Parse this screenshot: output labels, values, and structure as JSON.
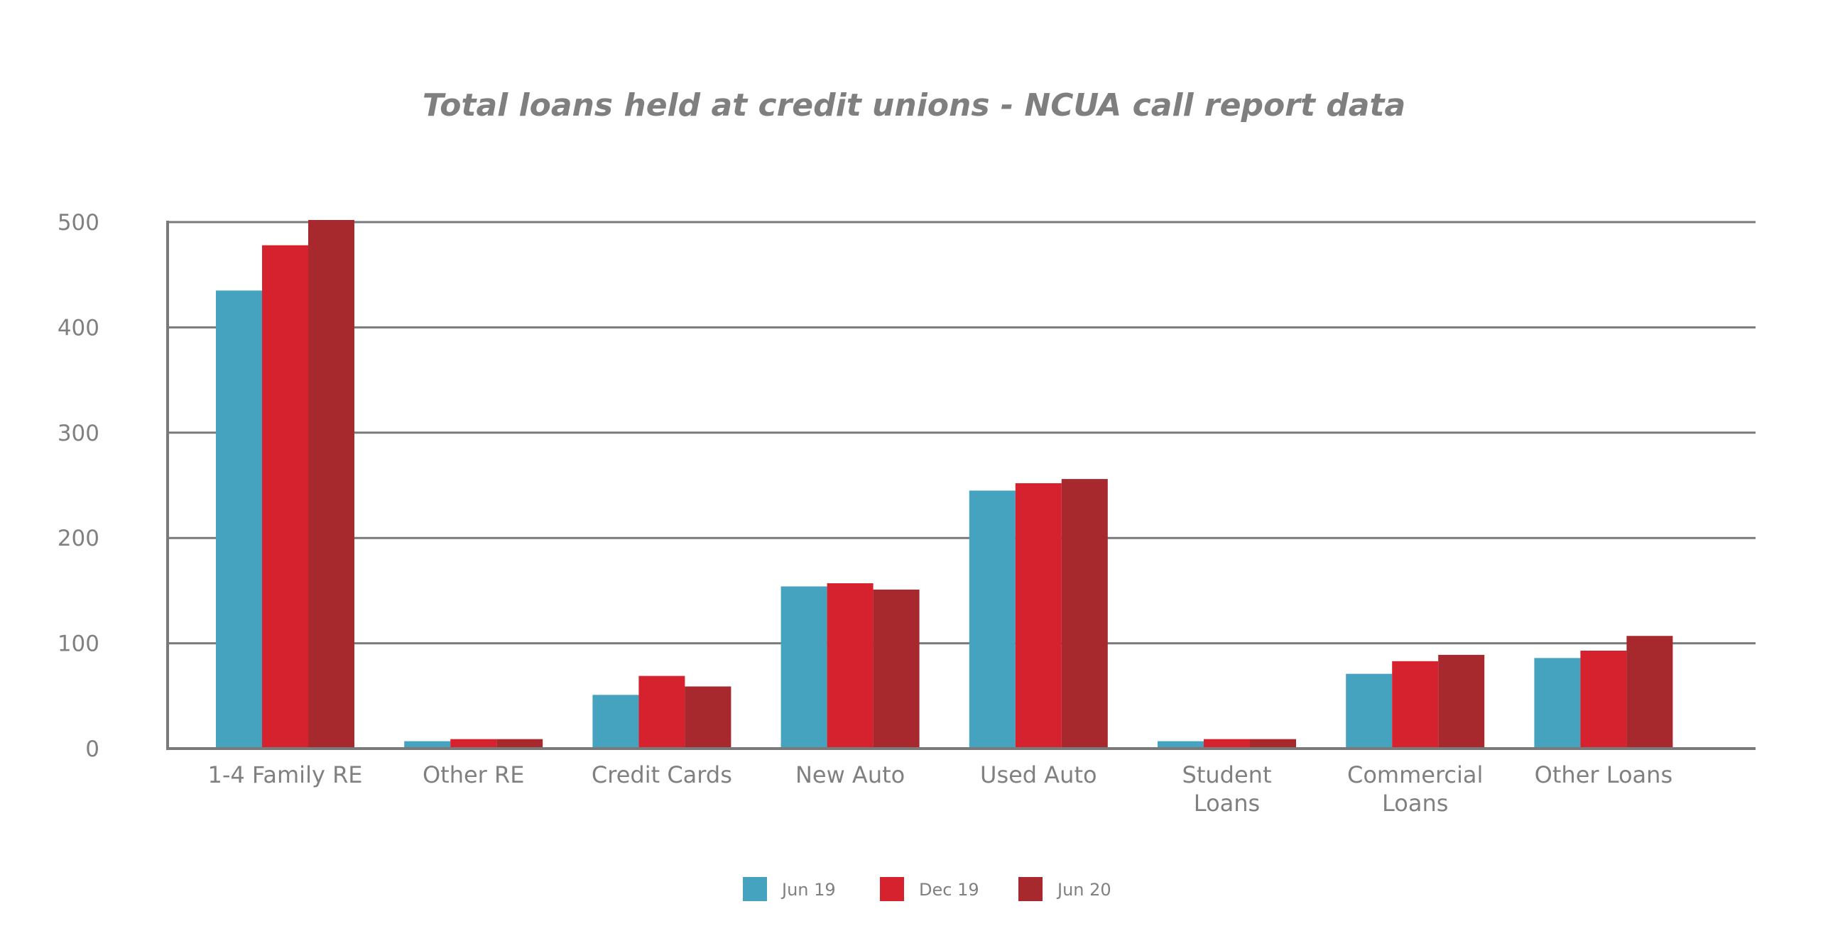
{
  "chart_data": {
    "type": "bar",
    "title": "Total loans held at credit unions - NCUA call report data",
    "xlabel": "",
    "ylabel": "",
    "ylim": [
      0,
      500
    ],
    "yticks": [
      "0",
      "100",
      "200",
      "300",
      "400",
      "500"
    ],
    "grid": true,
    "legend_position": "bottom",
    "categories": [
      [
        "1-4 Family RE"
      ],
      [
        "Other RE"
      ],
      [
        "Credit Cards"
      ],
      [
        "New Auto"
      ],
      [
        "Used Auto"
      ],
      [
        "Student",
        "Loans"
      ],
      [
        "Commercial",
        "Loans"
      ],
      [
        "Other Loans"
      ]
    ],
    "series": [
      {
        "name": "Jun 19",
        "color": "#45a3bf",
        "values": [
          435,
          7,
          51,
          154,
          245,
          7,
          71,
          86
        ]
      },
      {
        "name": "Dec 19",
        "color": "#d6212e",
        "values": [
          478,
          9,
          69,
          157,
          252,
          9,
          83,
          93
        ]
      },
      {
        "name": "Jun 20",
        "color": "#a7282d",
        "values": [
          502,
          9,
          59,
          151,
          256,
          9,
          89,
          107
        ]
      }
    ],
    "axis_color": "#7a7a7a"
  }
}
